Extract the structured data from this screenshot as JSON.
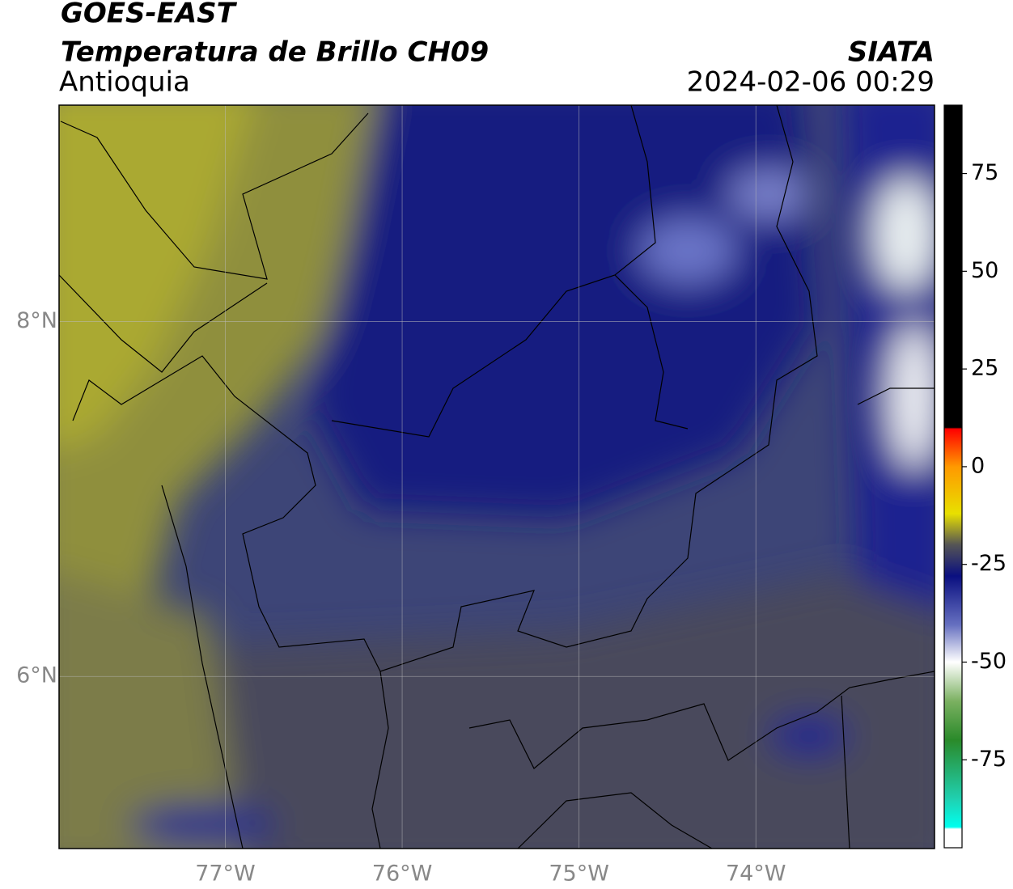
{
  "header": {
    "title": "GOES-EAST",
    "subtitle": "Temperatura de Brillo CH09",
    "region": "Antioquia",
    "source": "SIATA",
    "datetime": "2024-02-06 00:29"
  },
  "map": {
    "xlim": [
      -77.94,
      -72.99
    ],
    "xticks": [
      {
        "value": -77,
        "label": "77°W"
      },
      {
        "value": -76,
        "label": "76°W"
      },
      {
        "value": -75,
        "label": "75°W"
      },
      {
        "value": -74,
        "label": "74°W"
      }
    ],
    "ylim": [
      5.03,
      9.22
    ],
    "yticks": [
      {
        "value": 8,
        "label": "8°N"
      },
      {
        "value": 6,
        "label": "6°N"
      }
    ],
    "grid": true
  },
  "colorbar": {
    "lim": [
      -97.5,
      92.5
    ],
    "ticks": [
      75,
      50,
      25,
      0,
      -25,
      -50,
      -75
    ]
  }
}
